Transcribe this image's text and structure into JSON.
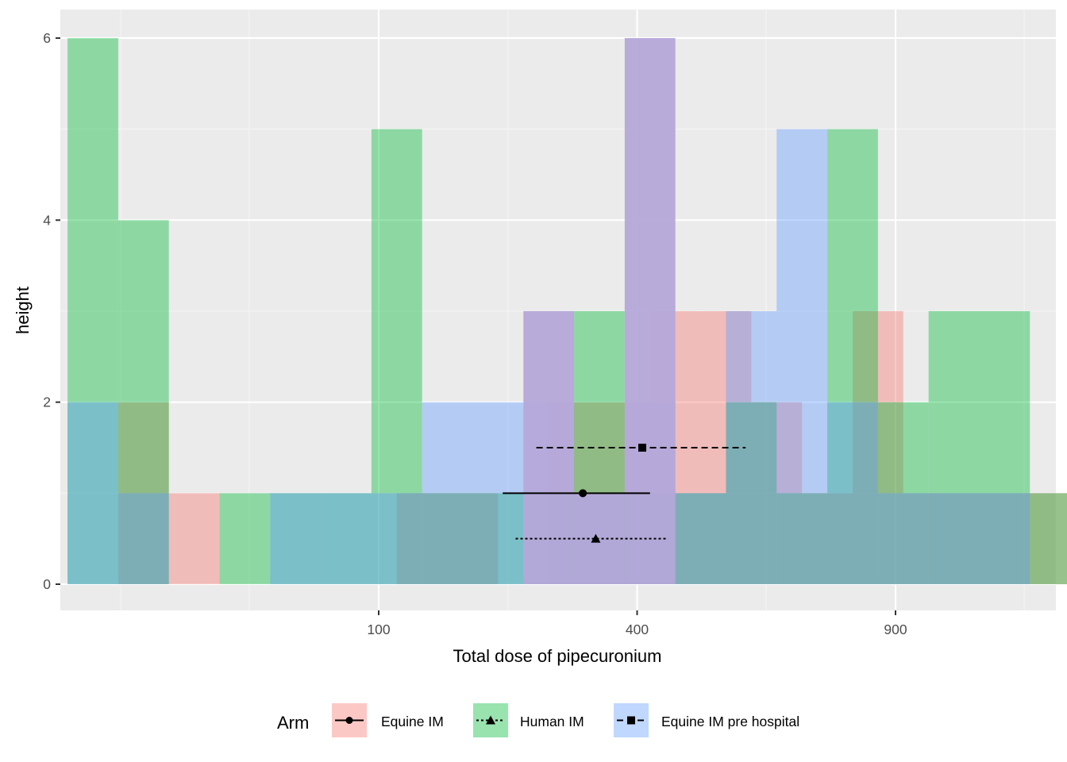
{
  "chart_data": {
    "type": "bar",
    "subtype": "overlaid histogram with mean ± error bars",
    "title": "",
    "xlabel": "Total dose of pipecuronium",
    "ylabel": "height",
    "x_scale": "sqrt",
    "x_tick_labels": [
      "100",
      "400",
      "900"
    ],
    "x_ticks": [
      100,
      400,
      900
    ],
    "y_tick_labels": [
      "0",
      "2",
      "4",
      "6"
    ],
    "y_ticks": [
      0,
      2,
      4,
      6
    ],
    "ylim": [
      -0.3,
      6.3
    ],
    "grid": true,
    "legend": {
      "title": "Arm",
      "position": "bottom",
      "entries": [
        {
          "label": "Equine IM",
          "fill": "#F8766D",
          "shape": "circle",
          "linetype": "solid"
        },
        {
          "label": "Human IM",
          "fill": "#00BA38",
          "shape": "triangle",
          "linetype": "dotted"
        },
        {
          "label": "Equine IM pre hospital",
          "fill": "#619CFF",
          "shape": "square",
          "linetype": "dashed"
        }
      ]
    },
    "bin_width_sqrt_units": 1.96,
    "series": [
      {
        "name": "Equine IM",
        "color": "#F8766D",
        "bins_sqrt_center": [
          0.9,
          2.86,
          11.68,
          13.64,
          17.56,
          19.52,
          21.48,
          23.44,
          25.4,
          27.36,
          29.32,
          31.28,
          33.24,
          35.2,
          37.16
        ],
        "counts": [
          2,
          1,
          1,
          1,
          2,
          2,
          3,
          3,
          2,
          1,
          3,
          1,
          1,
          1,
          1
        ],
        "mean_sqrt": 17.9,
        "ci_sqrt": [
          14.8,
          20.5
        ],
        "error_bar_y": 1.0
      },
      {
        "name": "Human IM",
        "color": "#00BA38",
        "bins_sqrt_center": [
          -1.06,
          0.9,
          4.82,
          6.78,
          8.74,
          10.7,
          12.66,
          14.62,
          16.58,
          18.54,
          20.5,
          22.46,
          24.42,
          26.38,
          28.34,
          30.3,
          32.26,
          34.22,
          36.18
        ],
        "counts": [
          6,
          4,
          1,
          1,
          1,
          5,
          1,
          1,
          1,
          3,
          1,
          1,
          2,
          1,
          5,
          2,
          3,
          3,
          1
        ],
        "mean_sqrt": 18.4,
        "ci_sqrt": [
          15.3,
          21.2
        ],
        "error_bar_y": 0.5
      },
      {
        "name": "Equine IM pre hospital",
        "color": "#619CFF",
        "bins_sqrt_center": [
          -1.06,
          0.9,
          6.78,
          8.74,
          10.7,
          12.66,
          14.62,
          16.58,
          18.54,
          20.5,
          22.46,
          24.42,
          26.38,
          28.34,
          30.3,
          32.26,
          34.22
        ],
        "counts": [
          2,
          1,
          1,
          1,
          1,
          2,
          2,
          2,
          1,
          2,
          1,
          3,
          5,
          2,
          1,
          1,
          1
        ],
        "mean_sqrt": 20.2,
        "ci_sqrt": [
          16.1,
          24.2
        ],
        "error_bar_y": 1.5
      }
    ],
    "overlay_bars": [
      {
        "center": 16.58,
        "count": 3,
        "color": "#B5A8D9"
      },
      {
        "center": 20.5,
        "count": 6,
        "color": "#B5A8D9"
      },
      {
        "center": 18.54,
        "count": 1,
        "color": "#B5A8D9"
      }
    ]
  }
}
